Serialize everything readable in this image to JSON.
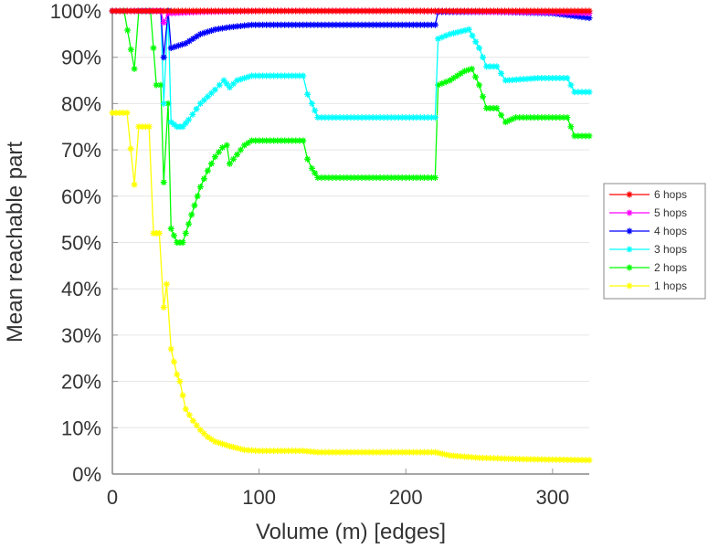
{
  "chart_data": {
    "type": "line",
    "title": "",
    "xlabel": "Volume (m) [edges]",
    "ylabel": "Mean reachable part",
    "xlim": [
      0,
      325
    ],
    "ylim": [
      0,
      100
    ],
    "xticks": [
      0,
      100,
      200,
      300
    ],
    "xtick_labels": [
      "0",
      "100",
      "200",
      "300"
    ],
    "yticks": [
      0,
      10,
      20,
      30,
      40,
      50,
      60,
      70,
      80,
      90,
      100
    ],
    "ytick_labels": [
      "0%",
      "10%",
      "20%",
      "30%",
      "40%",
      "50%",
      "60%",
      "70%",
      "80%",
      "90%",
      "100%"
    ],
    "grid": "horizontal",
    "legend_position": "right",
    "series": [
      {
        "name": "6 hops",
        "color": "#ff0000",
        "points": [
          [
            0,
            100
          ],
          [
            50,
            100
          ],
          [
            100,
            100
          ],
          [
            150,
            100
          ],
          [
            200,
            100
          ],
          [
            250,
            100
          ],
          [
            300,
            100
          ],
          [
            325,
            100
          ]
        ]
      },
      {
        "name": "5 hops",
        "color": "#ff00ff",
        "points": [
          [
            0,
            100
          ],
          [
            33,
            100
          ],
          [
            35,
            97.5
          ],
          [
            38,
            99.5
          ],
          [
            60,
            99.8
          ],
          [
            100,
            100
          ],
          [
            200,
            100
          ],
          [
            300,
            99.7
          ],
          [
            325,
            99.5
          ]
        ]
      },
      {
        "name": "4 hops",
        "color": "#0000ff",
        "points": [
          [
            0,
            100
          ],
          [
            33,
            100
          ],
          [
            35,
            90
          ],
          [
            38,
            100
          ],
          [
            40,
            92
          ],
          [
            50,
            93
          ],
          [
            60,
            95
          ],
          [
            70,
            96
          ],
          [
            80,
            96.5
          ],
          [
            95,
            97
          ],
          [
            150,
            97
          ],
          [
            220,
            97
          ],
          [
            222,
            99.8
          ],
          [
            260,
            99.8
          ],
          [
            300,
            99.5
          ],
          [
            325,
            98.5
          ]
        ]
      },
      {
        "name": "3 hops",
        "color": "#00ffff",
        "points": [
          [
            0,
            100
          ],
          [
            33,
            100
          ],
          [
            35,
            80
          ],
          [
            38,
            100
          ],
          [
            40,
            76
          ],
          [
            44,
            75
          ],
          [
            48,
            75
          ],
          [
            52,
            76.5
          ],
          [
            60,
            80
          ],
          [
            70,
            83
          ],
          [
            76,
            85
          ],
          [
            80,
            83.5
          ],
          [
            85,
            85
          ],
          [
            95,
            86
          ],
          [
            130,
            86
          ],
          [
            133,
            82
          ],
          [
            136,
            80
          ],
          [
            140,
            77
          ],
          [
            180,
            77
          ],
          [
            220,
            77
          ],
          [
            222,
            94
          ],
          [
            230,
            95
          ],
          [
            243,
            96
          ],
          [
            250,
            92
          ],
          [
            255,
            88
          ],
          [
            262,
            88
          ],
          [
            268,
            85
          ],
          [
            290,
            85.5
          ],
          [
            310,
            85.5
          ],
          [
            315,
            82.5
          ],
          [
            325,
            82.5
          ]
        ]
      },
      {
        "name": "2 hops",
        "color": "#00ff00",
        "points": [
          [
            0,
            100
          ],
          [
            8,
            100
          ],
          [
            15,
            87.5
          ],
          [
            18,
            100
          ],
          [
            26,
            100
          ],
          [
            30,
            84
          ],
          [
            33,
            84
          ],
          [
            35,
            63
          ],
          [
            38,
            80
          ],
          [
            40,
            53
          ],
          [
            44,
            50
          ],
          [
            48,
            50
          ],
          [
            52,
            54
          ],
          [
            56,
            58
          ],
          [
            60,
            62
          ],
          [
            65,
            65.5
          ],
          [
            70,
            68.5
          ],
          [
            75,
            70.5
          ],
          [
            78,
            71
          ],
          [
            80,
            67
          ],
          [
            85,
            69
          ],
          [
            90,
            71
          ],
          [
            95,
            72
          ],
          [
            130,
            72
          ],
          [
            133,
            68
          ],
          [
            136,
            66
          ],
          [
            140,
            64
          ],
          [
            180,
            64
          ],
          [
            220,
            64
          ],
          [
            222,
            84
          ],
          [
            230,
            85
          ],
          [
            240,
            87
          ],
          [
            245,
            87.5
          ],
          [
            250,
            84
          ],
          [
            255,
            79
          ],
          [
            262,
            79
          ],
          [
            268,
            76
          ],
          [
            275,
            77
          ],
          [
            310,
            77
          ],
          [
            315,
            73
          ],
          [
            325,
            73
          ]
        ]
      },
      {
        "name": "1 hops",
        "color": "#ffff00",
        "points": [
          [
            0,
            78
          ],
          [
            10,
            78
          ],
          [
            15,
            62.5
          ],
          [
            18,
            75
          ],
          [
            25,
            75
          ],
          [
            28,
            52
          ],
          [
            32,
            52
          ],
          [
            35,
            36
          ],
          [
            37,
            41
          ],
          [
            40,
            27
          ],
          [
            44,
            21.5
          ],
          [
            46,
            20
          ],
          [
            50,
            14
          ],
          [
            55,
            11.5
          ],
          [
            60,
            9.5
          ],
          [
            65,
            8
          ],
          [
            70,
            7
          ],
          [
            75,
            6.5
          ],
          [
            80,
            6
          ],
          [
            90,
            5.2
          ],
          [
            100,
            5
          ],
          [
            130,
            5
          ],
          [
            140,
            4.7
          ],
          [
            180,
            4.7
          ],
          [
            220,
            4.7
          ],
          [
            230,
            4
          ],
          [
            250,
            3.5
          ],
          [
            280,
            3.2
          ],
          [
            325,
            3
          ]
        ]
      }
    ]
  }
}
